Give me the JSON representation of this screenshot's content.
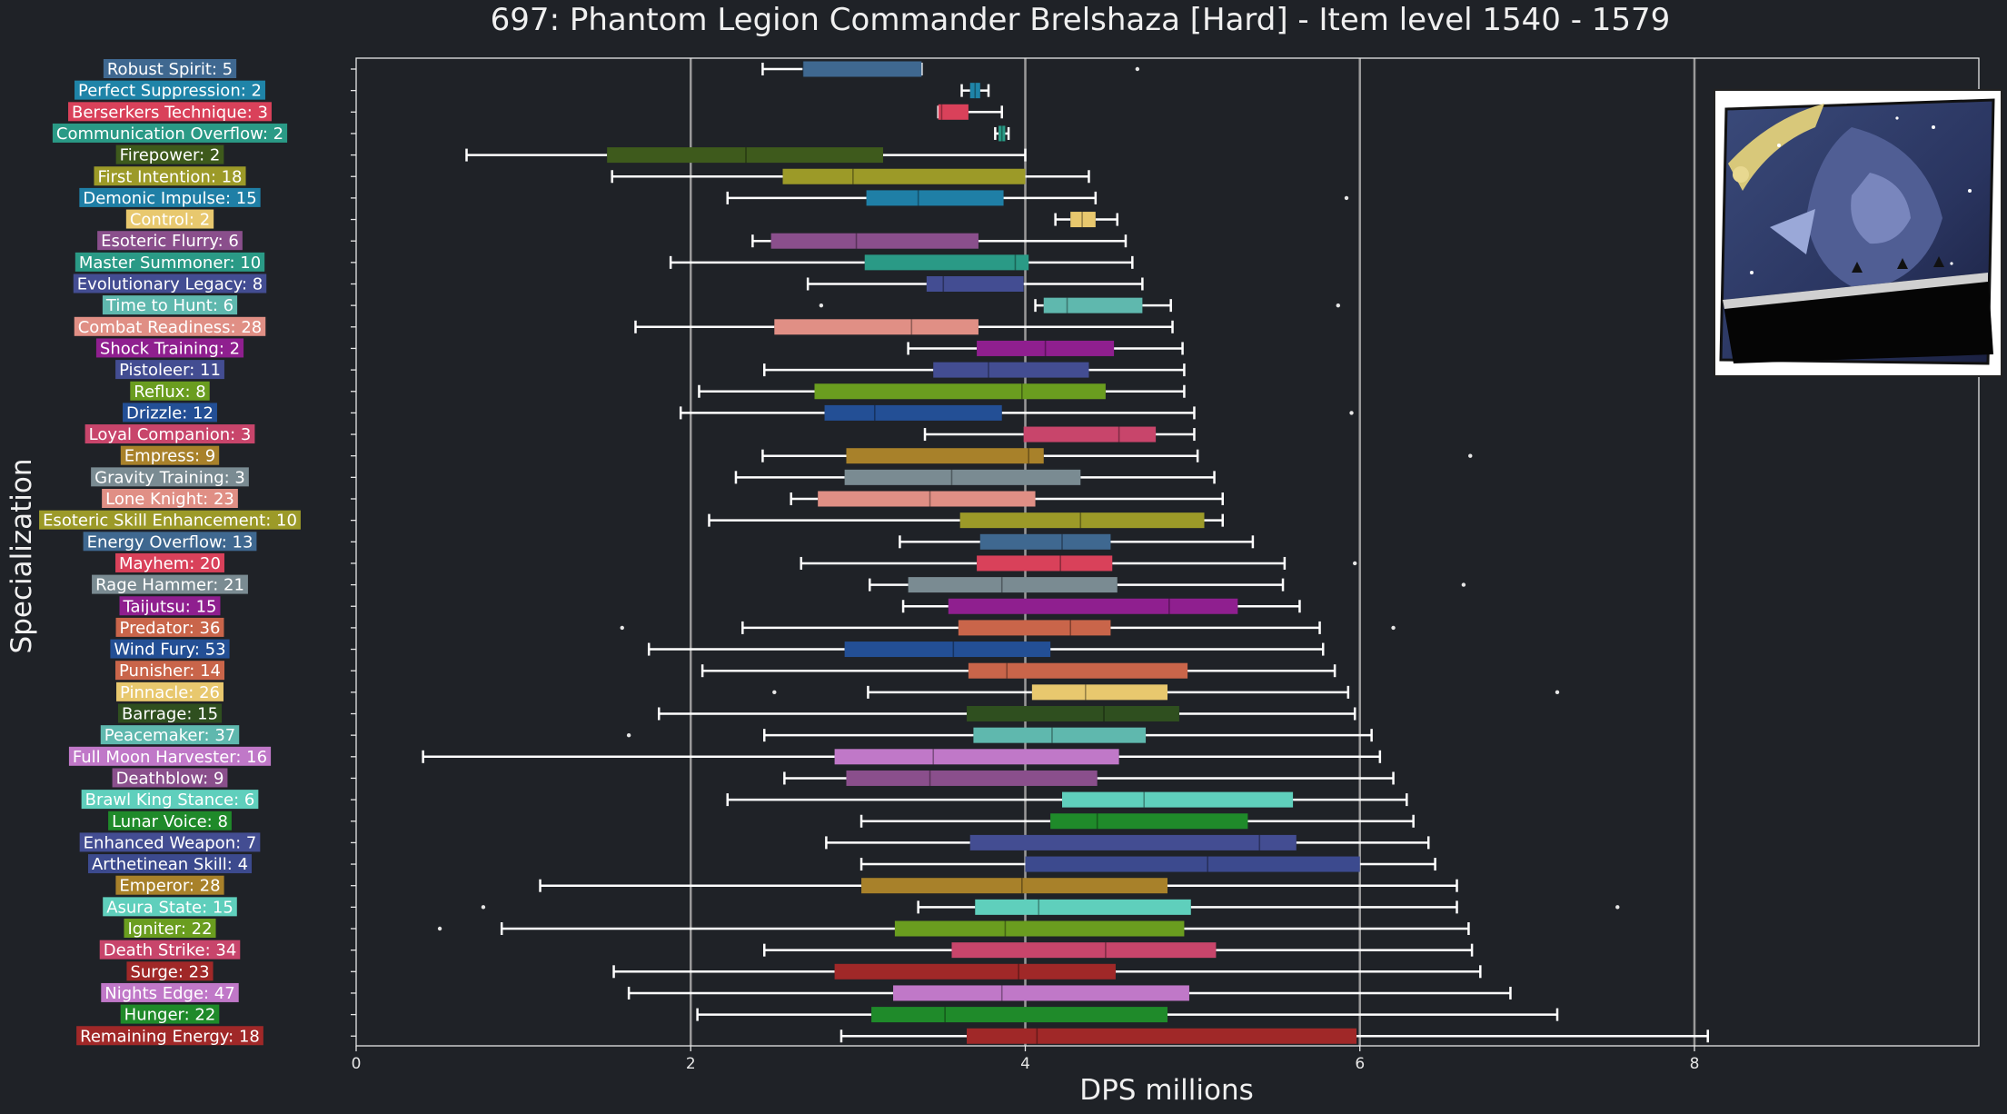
{
  "chart_data": {
    "type": "box",
    "title": "697: Phantom Legion Commander Brelshaza [Hard] - Item level 1540 - 1579",
    "xlabel": "DPS millions",
    "ylabel": "Specialization",
    "xlim": [
      0,
      9.7
    ],
    "xticks": [
      0,
      2,
      4,
      6,
      8
    ],
    "grid": "vertical lines at 2, 4, 6, 8",
    "series": [
      {
        "name": "Robust Spirit: 5",
        "color": "#3f6890",
        "whislo": 2.43,
        "q1": 2.67,
        "med": 2.67,
        "q3": 3.38,
        "whishi": 3.38,
        "fliers": [
          4.67
        ]
      },
      {
        "name": "Perfect Suppression: 2",
        "color": "#1f84a8",
        "whislo": 3.62,
        "q1": 3.67,
        "med": 3.7,
        "q3": 3.73,
        "whishi": 3.78,
        "fliers": []
      },
      {
        "name": "Berserkers Technique: 3",
        "color": "#d9415a",
        "whislo": 3.48,
        "q1": 3.48,
        "med": 3.5,
        "q3": 3.66,
        "whishi": 3.86,
        "fliers": []
      },
      {
        "name": "Communication Overflow: 2",
        "color": "#2a9a86",
        "whislo": 3.82,
        "q1": 3.84,
        "med": 3.86,
        "q3": 3.88,
        "whishi": 3.9,
        "fliers": []
      },
      {
        "name": "Firepower: 2",
        "color": "#3e5a1c",
        "whislo": 0.66,
        "q1": 1.5,
        "med": 2.33,
        "q3": 3.15,
        "whishi": 4.0,
        "fliers": []
      },
      {
        "name": "First Intention: 18",
        "color": "#9c9a28",
        "whislo": 1.53,
        "q1": 2.55,
        "med": 2.97,
        "q3": 4.0,
        "whishi": 4.38,
        "fliers": []
      },
      {
        "name": "Demonic Impulse: 15",
        "color": "#1f7fa6",
        "whislo": 2.22,
        "q1": 3.05,
        "med": 3.36,
        "q3": 3.87,
        "whishi": 4.42,
        "fliers": [
          5.92
        ]
      },
      {
        "name": "Control: 2",
        "color": "#e8c86e",
        "whislo": 4.18,
        "q1": 4.27,
        "med": 4.34,
        "q3": 4.42,
        "whishi": 4.55,
        "fliers": []
      },
      {
        "name": "Esoteric Flurry: 6",
        "color": "#8a4f8c",
        "whislo": 2.37,
        "q1": 2.48,
        "med": 2.99,
        "q3": 3.72,
        "whishi": 4.6,
        "fliers": []
      },
      {
        "name": "Master Summoner: 10",
        "color": "#2a9a86",
        "whislo": 1.88,
        "q1": 3.04,
        "med": 3.94,
        "q3": 4.02,
        "whishi": 4.64,
        "fliers": []
      },
      {
        "name": "Evolutionary Legacy: 8",
        "color": "#434d92",
        "whislo": 2.7,
        "q1": 3.41,
        "med": 3.51,
        "q3": 3.99,
        "whishi": 4.7,
        "fliers": []
      },
      {
        "name": "Time to Hunt: 6",
        "color": "#5fb8ae",
        "whislo": 4.06,
        "q1": 4.11,
        "med": 4.25,
        "q3": 4.7,
        "whishi": 4.87,
        "fliers": [
          2.78,
          5.87
        ]
      },
      {
        "name": "Combat Readiness: 28",
        "color": "#e08f85",
        "whislo": 1.67,
        "q1": 2.5,
        "med": 3.32,
        "q3": 3.72,
        "whishi": 4.88,
        "fliers": []
      },
      {
        "name": "Shock Training: 2",
        "color": "#8f1f8f",
        "whislo": 3.3,
        "q1": 3.71,
        "med": 4.12,
        "q3": 4.53,
        "whishi": 4.94,
        "fliers": []
      },
      {
        "name": "Pistoleer: 11",
        "color": "#434d92",
        "whislo": 2.44,
        "q1": 3.45,
        "med": 3.78,
        "q3": 4.38,
        "whishi": 4.95,
        "fliers": []
      },
      {
        "name": "Reflux: 8",
        "color": "#6a9d1f",
        "whislo": 2.05,
        "q1": 2.74,
        "med": 3.98,
        "q3": 4.48,
        "whishi": 4.95,
        "fliers": []
      },
      {
        "name": "Drizzle: 12",
        "color": "#234f95",
        "whislo": 1.94,
        "q1": 2.8,
        "med": 3.1,
        "q3": 3.86,
        "whishi": 5.01,
        "fliers": [
          5.95
        ]
      },
      {
        "name": "Loyal Companion: 3",
        "color": "#c8456b",
        "whislo": 3.4,
        "q1": 3.99,
        "med": 4.56,
        "q3": 4.78,
        "whishi": 5.01,
        "fliers": []
      },
      {
        "name": "Empress: 9",
        "color": "#a8812a",
        "whislo": 2.43,
        "q1": 2.93,
        "med": 4.02,
        "q3": 4.11,
        "whishi": 5.03,
        "fliers": [
          6.66
        ]
      },
      {
        "name": "Gravity Training: 3",
        "color": "#7a8b92",
        "whislo": 2.27,
        "q1": 2.92,
        "med": 3.56,
        "q3": 4.33,
        "whishi": 5.13,
        "fliers": []
      },
      {
        "name": "Lone Knight: 23",
        "color": "#e08f85",
        "whislo": 2.6,
        "q1": 2.76,
        "med": 3.43,
        "q3": 4.06,
        "whishi": 5.18,
        "fliers": []
      },
      {
        "name": "Esoteric Skill Enhancement: 10",
        "color": "#9c9a28",
        "whislo": 2.11,
        "q1": 3.61,
        "med": 4.33,
        "q3": 5.07,
        "whishi": 5.18,
        "fliers": []
      },
      {
        "name": "Energy Overflow: 13",
        "color": "#3f6890",
        "whislo": 3.25,
        "q1": 3.73,
        "med": 4.22,
        "q3": 4.51,
        "whishi": 5.36,
        "fliers": []
      },
      {
        "name": "Mayhem: 20",
        "color": "#d9415a",
        "whislo": 2.66,
        "q1": 3.71,
        "med": 4.21,
        "q3": 4.52,
        "whishi": 5.55,
        "fliers": [
          5.97
        ]
      },
      {
        "name": "Rage Hammer: 21",
        "color": "#7a8b92",
        "whislo": 3.07,
        "q1": 3.3,
        "med": 3.86,
        "q3": 4.55,
        "whishi": 5.54,
        "fliers": [
          6.62
        ]
      },
      {
        "name": "Taijutsu: 15",
        "color": "#8f1f8f",
        "whislo": 3.27,
        "q1": 3.54,
        "med": 4.86,
        "q3": 5.27,
        "whishi": 5.64,
        "fliers": []
      },
      {
        "name": "Predator: 36",
        "color": "#c9654a",
        "whislo": 2.31,
        "q1": 3.6,
        "med": 4.27,
        "q3": 4.51,
        "whishi": 5.76,
        "fliers": [
          1.59,
          6.2
        ]
      },
      {
        "name": "Wind Fury: 53",
        "color": "#234f95",
        "whislo": 1.75,
        "q1": 2.92,
        "med": 3.57,
        "q3": 4.15,
        "whishi": 5.78,
        "fliers": []
      },
      {
        "name": "Punisher: 14",
        "color": "#c9654a",
        "whislo": 2.07,
        "q1": 3.66,
        "med": 3.89,
        "q3": 4.97,
        "whishi": 5.85,
        "fliers": []
      },
      {
        "name": "Pinnacle: 26",
        "color": "#e8c86e",
        "whislo": 3.06,
        "q1": 4.04,
        "med": 4.36,
        "q3": 4.85,
        "whishi": 5.93,
        "fliers": [
          2.5,
          7.18
        ]
      },
      {
        "name": "Barrage: 15",
        "color": "#2f4f1f",
        "whislo": 1.81,
        "q1": 3.65,
        "med": 4.47,
        "q3": 4.92,
        "whishi": 5.97,
        "fliers": []
      },
      {
        "name": "Peacemaker: 37",
        "color": "#5fb8ae",
        "whislo": 2.44,
        "q1": 3.69,
        "med": 4.16,
        "q3": 4.72,
        "whishi": 6.07,
        "fliers": [
          1.63
        ]
      },
      {
        "name": "Full Moon Harvester: 16",
        "color": "#c078c8",
        "whislo": 0.4,
        "q1": 2.86,
        "med": 3.45,
        "q3": 4.56,
        "whishi": 6.12,
        "fliers": []
      },
      {
        "name": "Deathblow: 9",
        "color": "#8a4f8c",
        "whislo": 2.56,
        "q1": 2.93,
        "med": 3.43,
        "q3": 4.43,
        "whishi": 6.2,
        "fliers": []
      },
      {
        "name": "Brawl King Stance: 6",
        "color": "#5fcfbc",
        "whislo": 2.22,
        "q1": 4.22,
        "med": 4.71,
        "q3": 5.6,
        "whishi": 6.28,
        "fliers": []
      },
      {
        "name": "Lunar Voice: 8",
        "color": "#1f8a2a",
        "whislo": 3.02,
        "q1": 4.15,
        "med": 4.43,
        "q3": 5.33,
        "whishi": 6.32,
        "fliers": []
      },
      {
        "name": "Enhanced Weapon: 7",
        "color": "#434d92",
        "whislo": 2.81,
        "q1": 3.67,
        "med": 5.4,
        "q3": 5.62,
        "whishi": 6.41,
        "fliers": []
      },
      {
        "name": "Arthetinean Skill: 4",
        "color": "#3c4a8e",
        "whislo": 3.02,
        "q1": 4.0,
        "med": 5.09,
        "q3": 6.0,
        "whishi": 6.45,
        "fliers": []
      },
      {
        "name": "Emperor: 28",
        "color": "#a8812a",
        "whislo": 1.1,
        "q1": 3.02,
        "med": 3.98,
        "q3": 4.85,
        "whishi": 6.58,
        "fliers": []
      },
      {
        "name": "Asura State: 15",
        "color": "#5fcfbc",
        "whislo": 3.36,
        "q1": 3.7,
        "med": 4.08,
        "q3": 4.99,
        "whishi": 6.58,
        "fliers": [
          0.76,
          7.54
        ]
      },
      {
        "name": "Igniter: 22",
        "color": "#6a9d1f",
        "whislo": 0.87,
        "q1": 3.22,
        "med": 3.88,
        "q3": 4.95,
        "whishi": 6.65,
        "fliers": [
          0.5
        ]
      },
      {
        "name": "Death Strike: 34",
        "color": "#c8456b",
        "whislo": 2.44,
        "q1": 3.56,
        "med": 4.48,
        "q3": 5.14,
        "whishi": 6.67,
        "fliers": []
      },
      {
        "name": "Surge: 23",
        "color": "#a02828",
        "whislo": 1.54,
        "q1": 2.86,
        "med": 3.96,
        "q3": 4.54,
        "whishi": 6.72,
        "fliers": []
      },
      {
        "name": "Nights Edge: 47",
        "color": "#c078c8",
        "whislo": 1.63,
        "q1": 3.21,
        "med": 3.86,
        "q3": 4.98,
        "whishi": 6.9,
        "fliers": []
      },
      {
        "name": "Hunger: 22",
        "color": "#1f8a2a",
        "whislo": 2.04,
        "q1": 3.08,
        "med": 3.52,
        "q3": 4.85,
        "whishi": 7.18,
        "fliers": []
      },
      {
        "name": "Remaining Energy: 18",
        "color": "#a02828",
        "whislo": 2.9,
        "q1": 3.65,
        "med": 4.07,
        "q3": 5.98,
        "whishi": 8.08,
        "fliers": []
      }
    ]
  },
  "colors": {
    "background": "#1f2227",
    "plot_frame": "#e6e6e6",
    "grid": "#9a9a9a",
    "whisker": "#ffffff",
    "text": "#f0f0f0"
  },
  "portrait": {
    "icon": "boss-portrait-image"
  }
}
